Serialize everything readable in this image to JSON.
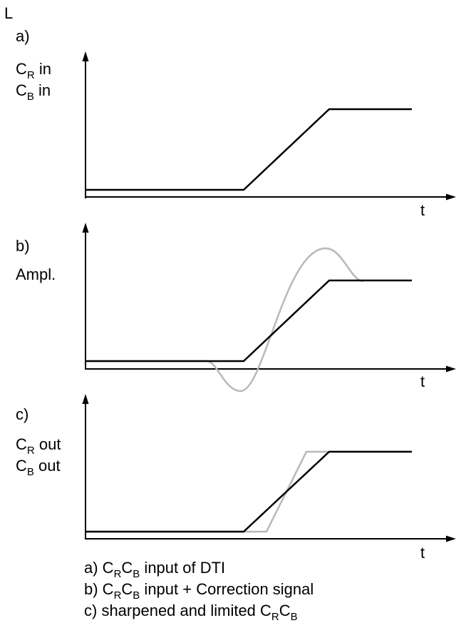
{
  "corner_label": "L",
  "panels": [
    {
      "id": "a",
      "letter": "a)",
      "ylabel_lines": [
        {
          "main": "C",
          "sub": "R",
          "rest": " in"
        },
        {
          "main": "C",
          "sub": "B",
          "rest": " in"
        }
      ],
      "xlabel": "t"
    },
    {
      "id": "b",
      "letter": "b)",
      "ylabel_lines": [
        {
          "main": "Ampl.",
          "sub": "",
          "rest": ""
        }
      ],
      "xlabel": "t"
    },
    {
      "id": "c",
      "letter": "c)",
      "ylabel_lines": [
        {
          "main": "C",
          "sub": "R",
          "rest": " out"
        },
        {
          "main": "C",
          "sub": "B",
          "rest": " out"
        }
      ],
      "xlabel": "t"
    }
  ],
  "legend": [
    {
      "parts": [
        {
          "t": "a) C"
        },
        {
          "t": "R",
          "sub": true
        },
        {
          "t": "C"
        },
        {
          "t": "B",
          "sub": true
        },
        {
          "t": " input of DTI"
        }
      ]
    },
    {
      "parts": [
        {
          "t": "b) C"
        },
        {
          "t": "R",
          "sub": true
        },
        {
          "t": "C"
        },
        {
          "t": "B",
          "sub": true
        },
        {
          "t": " input + Correction signal"
        }
      ]
    },
    {
      "parts": [
        {
          "t": "c) sharpened and limited C"
        },
        {
          "t": "R",
          "sub": true
        },
        {
          "t": "C"
        },
        {
          "t": "B",
          "sub": true
        }
      ]
    }
  ],
  "colors": {
    "main_curve": "#000000",
    "secondary_curve": "#b8b8b8"
  }
}
